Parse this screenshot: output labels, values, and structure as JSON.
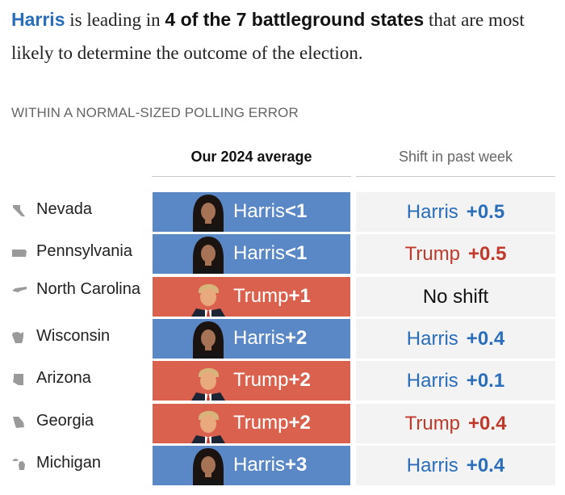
{
  "headline": {
    "candidate": "Harris",
    "text1": " is leading in ",
    "emphasis": "4 of the 7 battleground states",
    "text2": " that are most likely to determine the outcome of the election."
  },
  "subhead": "WITHIN A NORMAL-SIZED POLLING ERROR",
  "columns": {
    "average": "Our 2024 average",
    "shift": "Shift in past week"
  },
  "colors": {
    "harris_fill": "#5a88c7",
    "trump_fill": "#d9614e",
    "harris_text": "#2a6ebb",
    "trump_text": "#c0392b",
    "shift_bg": "#f3f3f3"
  },
  "rows": [
    {
      "state": "Nevada",
      "icon": "nevada-icon",
      "leader": "Harris",
      "margin": "<1",
      "shift_name": "Harris",
      "shift_value": "+0.5"
    },
    {
      "state": "Pennsylvania",
      "icon": "pennsylvania-icon",
      "leader": "Harris",
      "margin": "<1",
      "shift_name": "Trump",
      "shift_value": "+0.5"
    },
    {
      "state": "North Carolina",
      "icon": "north-carolina-icon",
      "leader": "Trump",
      "margin": "+1",
      "shift_text": "No shift"
    },
    {
      "state": "Wisconsin",
      "icon": "wisconsin-icon",
      "leader": "Harris",
      "margin": "+2",
      "shift_name": "Harris",
      "shift_value": "+0.4"
    },
    {
      "state": "Arizona",
      "icon": "arizona-icon",
      "leader": "Trump",
      "margin": "+2",
      "shift_name": "Harris",
      "shift_value": "+0.1"
    },
    {
      "state": "Georgia",
      "icon": "georgia-icon",
      "leader": "Trump",
      "margin": "+2",
      "shift_name": "Trump",
      "shift_value": "+0.4"
    },
    {
      "state": "Michigan",
      "icon": "michigan-icon",
      "leader": "Harris",
      "margin": "+3",
      "shift_name": "Harris",
      "shift_value": "+0.4"
    }
  ]
}
